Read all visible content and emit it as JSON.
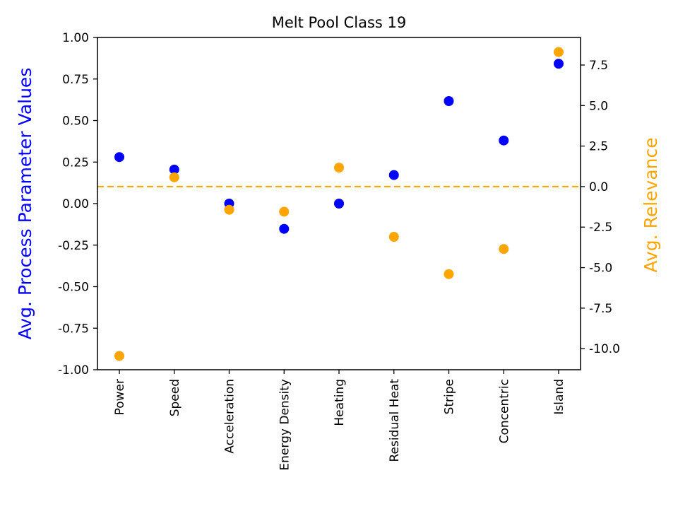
{
  "chart_data": {
    "type": "scatter",
    "title": "Melt Pool Class 19",
    "categories": [
      "Power",
      "Speed",
      "Acceleration",
      "Energy Density",
      "Heating",
      "Residual Heat",
      "Stripe",
      "Concentric",
      "Island"
    ],
    "ylabel_left": "Avg. Process Parameter Values",
    "ylabel_right": "Avg. Relevance",
    "ylim_left": [
      -1.0,
      1.0
    ],
    "ylim_right": [
      -11.3,
      9.2
    ],
    "yticks_left": [
      "-1.00",
      "-0.75",
      "-0.50",
      "-0.25",
      "0.00",
      "0.25",
      "0.50",
      "0.75",
      "1.00"
    ],
    "yticks_right": [
      "-10.0",
      "-7.5",
      "-5.0",
      "-2.5",
      "0.0",
      "2.5",
      "5.0",
      "7.5"
    ],
    "yticks_left_values": [
      -1.0,
      -0.75,
      -0.5,
      -0.25,
      0.0,
      0.25,
      0.5,
      0.75,
      1.0
    ],
    "yticks_right_values": [
      -10.0,
      -7.5,
      -5.0,
      -2.5,
      0.0,
      2.5,
      5.0,
      7.5
    ],
    "reference_line_right": 0.0,
    "series": [
      {
        "axis": "left",
        "color": "#0000ff",
        "values": [
          0.28,
          0.205,
          0.0,
          -0.152,
          0.0,
          0.172,
          0.617,
          0.38,
          0.842
        ]
      },
      {
        "axis": "right",
        "color": "#ffa500",
        "values": [
          -10.45,
          0.57,
          -1.43,
          -1.55,
          1.17,
          -3.1,
          -5.4,
          -3.85,
          8.3
        ]
      }
    ]
  }
}
